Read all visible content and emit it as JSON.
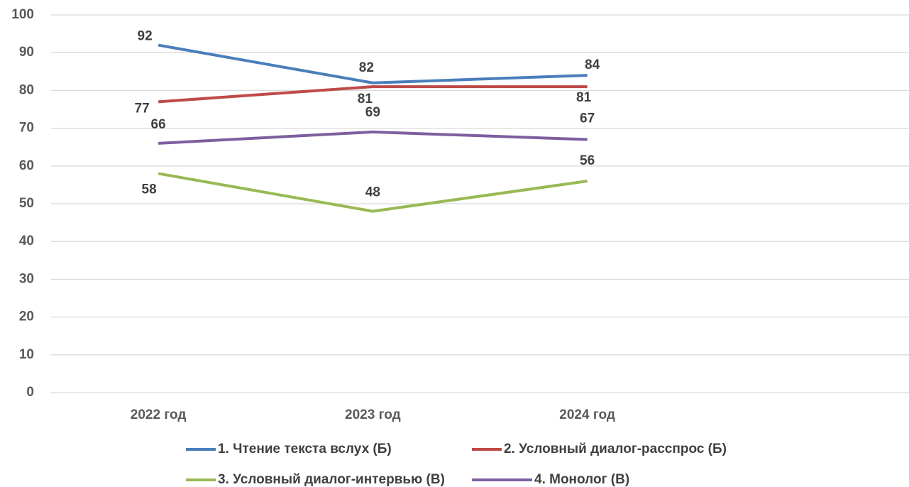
{
  "chart_data": {
    "type": "line",
    "categories": [
      "2022 год",
      "2023 год",
      "2024 год",
      null
    ],
    "series": [
      {
        "name": "1. Чтение текста вслух (Б)",
        "color": "#4a7ebb",
        "values": [
          92,
          82,
          84,
          null
        ]
      },
      {
        "name": "2. Условный диалог-расспрос (Б)",
        "color": "#be4b48",
        "values": [
          77,
          81,
          81,
          null
        ]
      },
      {
        "name": "3. Условный диалог-интервью (В)",
        "color": "#98b954",
        "values": [
          58,
          48,
          56,
          null
        ]
      },
      {
        "name": "4. Монолог (В)",
        "color": "#7d5fa0",
        "values": [
          66,
          69,
          67,
          null
        ]
      }
    ],
    "ylim": [
      0,
      100
    ],
    "yticks": [
      0,
      10,
      20,
      30,
      40,
      50,
      60,
      70,
      80,
      90,
      100
    ],
    "grid": true,
    "legend": "bottom",
    "data_labels": true
  }
}
